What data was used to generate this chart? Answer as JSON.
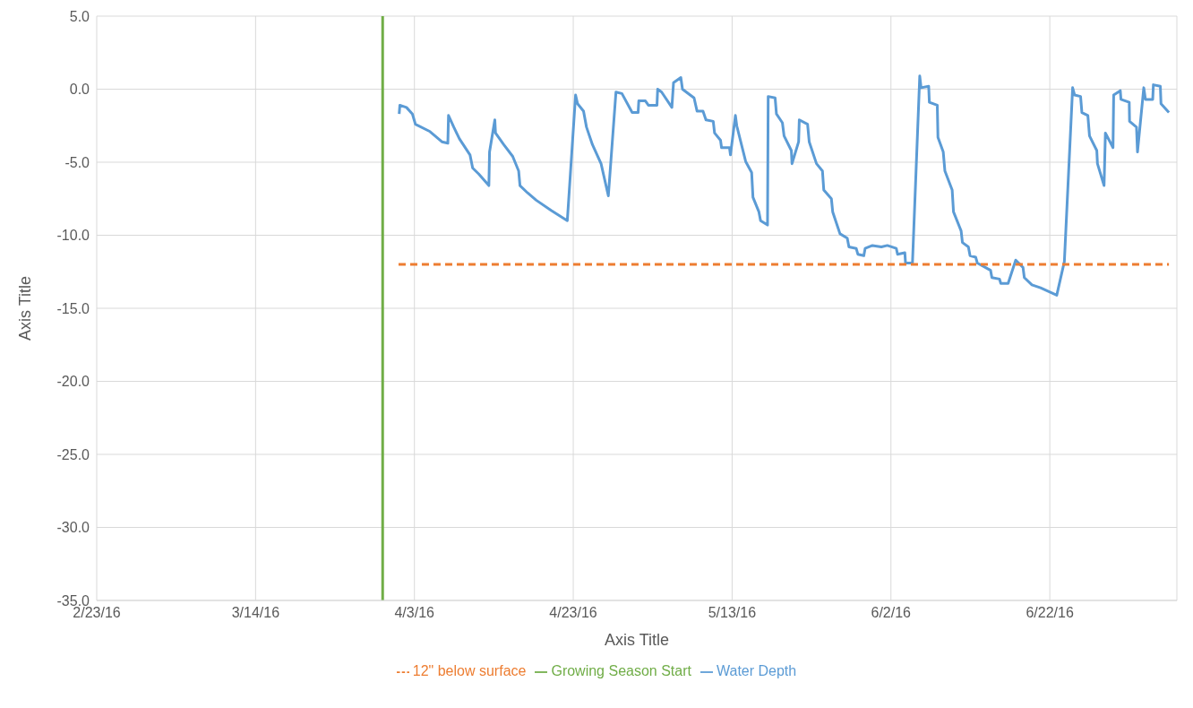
{
  "chart_data": {
    "type": "line",
    "xlabel": "Axis Title",
    "ylabel": "Axis Title",
    "legend": "bottom",
    "grid": true,
    "marker": "none",
    "xlim": [
      "2016-02-23",
      "2016-07-08"
    ],
    "xticks": [
      {
        "value": "2016-02-23",
        "label": "2/23/16"
      },
      {
        "value": "2016-03-14",
        "label": "3/14/16"
      },
      {
        "value": "2016-04-03",
        "label": "4/3/16"
      },
      {
        "value": "2016-04-23",
        "label": "4/23/16"
      },
      {
        "value": "2016-05-13",
        "label": "5/13/16"
      },
      {
        "value": "2016-06-02",
        "label": "6/2/16"
      },
      {
        "value": "2016-06-22",
        "label": "6/22/16"
      }
    ],
    "ylim": [
      -35,
      5
    ],
    "yticks": [
      {
        "value": -35,
        "label": "-35.0"
      },
      {
        "value": -30,
        "label": "-30.0"
      },
      {
        "value": -25,
        "label": "-25.0"
      },
      {
        "value": -20,
        "label": "-20.0"
      },
      {
        "value": -15,
        "label": "-15.0"
      },
      {
        "value": -10,
        "label": "-10.0"
      },
      {
        "value": -5,
        "label": "-5.0"
      },
      {
        "value": 0,
        "label": "0.0"
      },
      {
        "value": 5,
        "label": "5.0"
      }
    ],
    "series": [
      {
        "name": "Water Depth",
        "color": "#5b9bd5",
        "line_style": "solid",
        "x": [
          "2016-04-01T02:00",
          "2016-04-01T04:00",
          "2016-04-02T00:00",
          "2016-04-02T18:00",
          "2016-04-03T03:00",
          "2016-04-04T23:00",
          "2016-04-06T11:00",
          "2016-04-07T05:00",
          "2016-04-07T07:00",
          "2016-04-07T23:00",
          "2016-04-08T16:00",
          "2016-04-10T00:00",
          "2016-04-10T08:00",
          "2016-04-11T02:00",
          "2016-04-12T09:00",
          "2016-04-12T11:00",
          "2016-04-13T03:00",
          "2016-04-13T05:00",
          "2016-04-14T06:00",
          "2016-04-15T09:00",
          "2016-04-16T03:00",
          "2016-04-16T07:00",
          "2016-04-17T06:00",
          "2016-04-18T08:00",
          "2016-04-20T05:00",
          "2016-04-22T06:00",
          "2016-04-23T07:00",
          "2016-04-23T13:00",
          "2016-04-24T07:00",
          "2016-04-24T16:00",
          "2016-04-25T10:00",
          "2016-04-26T12:00",
          "2016-04-27T10:00",
          "2016-04-28T09:00",
          "2016-04-29T03:00",
          "2016-04-30T10:00",
          "2016-05-01T04:00",
          "2016-05-01T06:00",
          "2016-05-02T02:00",
          "2016-05-02T11:00",
          "2016-05-03T13:00",
          "2016-05-03T15:00",
          "2016-05-04T03:00",
          "2016-05-05T10:00",
          "2016-05-05T15:00",
          "2016-05-06T13:00",
          "2016-05-06T18:00",
          "2016-05-08T05:00",
          "2016-05-08T14:00",
          "2016-05-09T08:00",
          "2016-05-09T17:00",
          "2016-05-10T15:00",
          "2016-05-10T19:00",
          "2016-05-11T13:00",
          "2016-05-11T16:00",
          "2016-05-12T16:00",
          "2016-05-12T19:00",
          "2016-05-13T10:00",
          "2016-05-13T14:00",
          "2016-05-14T17:00",
          "2016-05-15T11:00",
          "2016-05-15T15:00",
          "2016-05-16T09:00",
          "2016-05-16T14:00",
          "2016-05-17T11:00",
          "2016-05-17T13:00",
          "2016-05-18T10:00",
          "2016-05-18T14:00",
          "2016-05-19T08:00",
          "2016-05-19T13:00",
          "2016-05-20T11:00",
          "2016-05-20T13:00",
          "2016-05-21T09:00",
          "2016-05-21T11:00",
          "2016-05-22T12:00",
          "2016-05-22T17:00",
          "2016-05-23T15:00",
          "2016-05-24T09:00",
          "2016-05-24T13:00",
          "2016-05-25T12:00",
          "2016-05-25T16:00",
          "2016-05-26T14:00",
          "2016-05-27T12:00",
          "2016-05-27T17:00",
          "2016-05-28T15:00",
          "2016-05-28T20:00",
          "2016-05-29T14:00",
          "2016-05-29T18:00",
          "2016-05-30T16:00",
          "2016-05-31T19:00",
          "2016-06-01T13:00",
          "2016-06-02T16:00",
          "2016-06-02T20:00",
          "2016-06-03T18:00",
          "2016-06-03T20:00",
          "2016-06-04T17:00",
          "2016-06-05T15:00",
          "2016-06-05T19:00",
          "2016-06-06T18:00",
          "2016-06-06T20:00",
          "2016-06-07T20:00",
          "2016-06-07T22:00",
          "2016-06-08T14:00",
          "2016-06-08T19:00",
          "2016-06-09T17:00",
          "2016-06-09T21:00",
          "2016-06-10T20:00",
          "2016-06-11T00:00",
          "2016-06-11T18:00",
          "2016-06-11T23:00",
          "2016-06-12T16:00",
          "2016-06-12T21:00",
          "2016-06-14T13:00",
          "2016-06-14T17:00",
          "2016-06-15T16:00",
          "2016-06-15T20:00",
          "2016-06-16T18:00",
          "2016-06-17T17:00",
          "2016-06-18T15:00",
          "2016-06-18T19:00",
          "2016-06-19T18:00",
          "2016-06-20T20:00",
          "2016-06-22T21:00",
          "2016-06-23T20:00",
          "2016-06-24T21:00",
          "2016-06-25T03:00",
          "2016-06-25T21:00",
          "2016-06-26T01:00",
          "2016-06-26T19:00",
          "2016-06-27T00:00",
          "2016-06-27T22:00",
          "2016-06-28T00:00",
          "2016-06-28T20:00",
          "2016-06-29T00:00",
          "2016-06-29T23:00",
          "2016-06-30T01:00",
          "2016-06-30T21:00",
          "2016-06-30T23:00",
          "2016-07-02T00:00",
          "2016-07-02T01:00",
          "2016-07-02T22:00",
          "2016-07-03T01:00",
          "2016-07-03T20:00",
          "2016-07-04T01:00",
          "2016-07-04T23:00",
          "2016-07-05T01:00",
          "2016-07-05T22:00",
          "2016-07-06T00:00",
          "2016-07-07T00:00"
        ],
        "values": [
          -1.7,
          -1.1,
          -1.25,
          -1.7,
          -2.4,
          -2.9,
          -3.6,
          -3.7,
          -1.8,
          -2.6,
          -3.4,
          -4.5,
          -5.4,
          -5.8,
          -6.6,
          -4.3,
          -2.1,
          -3.0,
          -3.8,
          -4.6,
          -5.6,
          -6.6,
          -7.1,
          -7.6,
          -8.3,
          -9.0,
          -0.4,
          -1.0,
          -1.5,
          -2.6,
          -3.8,
          -5.1,
          -7.3,
          -0.2,
          -0.3,
          -1.6,
          -1.6,
          -0.8,
          -0.8,
          -1.1,
          -1.1,
          0.0,
          -0.2,
          -1.25,
          0.45,
          0.8,
          0.0,
          -0.6,
          -1.5,
          -1.5,
          -2.1,
          -2.2,
          -3.0,
          -3.5,
          -4.0,
          -4.0,
          -4.5,
          -1.8,
          -2.5,
          -4.95,
          -5.7,
          -7.4,
          -8.4,
          -9.0,
          -9.3,
          -0.5,
          -0.6,
          -1.7,
          -2.3,
          -3.2,
          -4.2,
          -5.1,
          -3.6,
          -2.1,
          -2.4,
          -3.6,
          -5.1,
          -5.6,
          -6.9,
          -7.5,
          -8.4,
          -9.9,
          -10.2,
          -10.8,
          -10.9,
          -11.3,
          -11.4,
          -10.9,
          -10.7,
          -10.8,
          -10.7,
          -10.9,
          -11.3,
          -11.2,
          -11.9,
          -11.9,
          0.9,
          0.1,
          0.2,
          -0.9,
          -1.1,
          -3.3,
          -4.3,
          -5.6,
          -6.9,
          -8.4,
          -9.7,
          -10.5,
          -10.8,
          -11.4,
          -11.5,
          -11.9,
          -12.4,
          -12.9,
          -13.0,
          -13.3,
          -13.3,
          -11.7,
          -12.2,
          -12.9,
          -13.4,
          -13.6,
          -14.1,
          -11.8,
          0.1,
          -0.4,
          -0.5,
          -1.6,
          -1.8,
          -3.2,
          -4.2,
          -5.1,
          -6.6,
          -3.0,
          -4.0,
          -0.4,
          -0.1,
          -0.7,
          -0.9,
          -2.2,
          -2.6,
          -4.3,
          0.1,
          -0.7,
          -0.7,
          0.3,
          0.2,
          -1.0,
          -1.6
        ]
      },
      {
        "name": "12\" below surface",
        "color": "#ed7d31",
        "line_style": "dashed",
        "x": [
          "2016-04-01",
          "2016-07-07"
        ],
        "values": [
          -12,
          -12
        ]
      },
      {
        "name": "Growing Season Start",
        "color": "#70ad47",
        "line_style": "solid",
        "x": [
          "2016-03-30",
          "2016-03-30"
        ],
        "values": [
          5,
          -35
        ]
      }
    ]
  }
}
